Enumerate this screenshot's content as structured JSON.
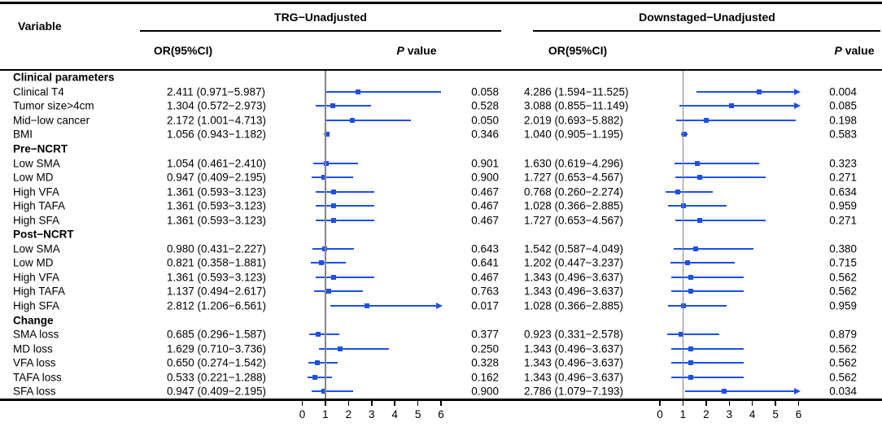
{
  "header": {
    "variable_label": "Variable",
    "or_ci_label": "OR(95%CI)",
    "p_label_italic": "P",
    "p_label_rest": " value"
  },
  "colors": {
    "accent_blue": "#1e50e6",
    "reference_gray": "#858585",
    "text_black": "#000000"
  },
  "chart_data": {
    "type": "scatter",
    "subtype": "forest-plot",
    "groups": [
      "TRG−Unadjusted",
      "Downstaged−Unadjusted"
    ],
    "x_axis": {
      "ticks": [
        0,
        1,
        2,
        3,
        4,
        5,
        6
      ],
      "range": [
        0,
        6
      ],
      "reference_line": 1
    },
    "rows": [
      {
        "type": "section",
        "label": "Clinical parameters"
      },
      {
        "type": "data",
        "label": "Clinical T4",
        "trg": {
          "text": "2.411 (0.971−5.987)",
          "or": 2.411,
          "lo": 0.971,
          "hi": 5.987,
          "p": "0.058"
        },
        "ds": {
          "text": "4.286 (1.594−11.525)",
          "or": 4.286,
          "lo": 1.594,
          "hi": 11.525,
          "p": "0.004"
        }
      },
      {
        "type": "data",
        "label": "Tumor size>4cm",
        "trg": {
          "text": "1.304 (0.572−2.973)",
          "or": 1.304,
          "lo": 0.572,
          "hi": 2.973,
          "p": "0.528"
        },
        "ds": {
          "text": "3.088 (0.855−11.149)",
          "or": 3.088,
          "lo": 0.855,
          "hi": 11.149,
          "p": "0.085"
        }
      },
      {
        "type": "data",
        "label": "Mid−low cancer",
        "trg": {
          "text": "2.172 (1.001−4.713)",
          "or": 2.172,
          "lo": 1.001,
          "hi": 4.713,
          "p": "0.050"
        },
        "ds": {
          "text": "2.019 (0.693−5.882)",
          "or": 2.019,
          "lo": 0.693,
          "hi": 5.882,
          "p": "0.198"
        }
      },
      {
        "type": "data",
        "label": "BMI",
        "trg": {
          "text": "1.056 (0.943−1.182)",
          "or": 1.056,
          "lo": 0.943,
          "hi": 1.182,
          "p": "0.346"
        },
        "ds": {
          "text": "1.040 (0.905−1.195)",
          "or": 1.04,
          "lo": 0.905,
          "hi": 1.195,
          "p": "0.583"
        }
      },
      {
        "type": "section",
        "label": "Pre−NCRT"
      },
      {
        "type": "data",
        "label": "Low SMA",
        "trg": {
          "text": "1.054 (0.461−2.410)",
          "or": 1.054,
          "lo": 0.461,
          "hi": 2.41,
          "p": "0.901"
        },
        "ds": {
          "text": "1.630 (0.619−4.296)",
          "or": 1.63,
          "lo": 0.619,
          "hi": 4.296,
          "p": "0.323"
        }
      },
      {
        "type": "data",
        "label": "Low MD",
        "trg": {
          "text": "0.947 (0.409−2.195)",
          "or": 0.947,
          "lo": 0.409,
          "hi": 2.195,
          "p": "0.900"
        },
        "ds": {
          "text": "1.727 (0.653−4.567)",
          "or": 1.727,
          "lo": 0.653,
          "hi": 4.567,
          "p": "0.271"
        }
      },
      {
        "type": "data",
        "label": "High VFA",
        "trg": {
          "text": "1.361 (0.593−3.123)",
          "or": 1.361,
          "lo": 0.593,
          "hi": 3.123,
          "p": "0.467"
        },
        "ds": {
          "text": "0.768 (0.260−2.274)",
          "or": 0.768,
          "lo": 0.26,
          "hi": 2.274,
          "p": "0.634"
        }
      },
      {
        "type": "data",
        "label": "High TAFA",
        "trg": {
          "text": "1.361 (0.593−3.123)",
          "or": 1.361,
          "lo": 0.593,
          "hi": 3.123,
          "p": "0.467"
        },
        "ds": {
          "text": "1.028 (0.366−2.885)",
          "or": 1.028,
          "lo": 0.366,
          "hi": 2.885,
          "p": "0.959"
        }
      },
      {
        "type": "data",
        "label": "High SFA",
        "trg": {
          "text": "1.361 (0.593−3.123)",
          "or": 1.361,
          "lo": 0.593,
          "hi": 3.123,
          "p": "0.467"
        },
        "ds": {
          "text": "1.727 (0.653−4.567)",
          "or": 1.727,
          "lo": 0.653,
          "hi": 4.567,
          "p": "0.271"
        }
      },
      {
        "type": "section",
        "label": "Post−NCRT"
      },
      {
        "type": "data",
        "label": "Low SMA",
        "trg": {
          "text": "0.980 (0.431−2.227)",
          "or": 0.98,
          "lo": 0.431,
          "hi": 2.227,
          "p": "0.643"
        },
        "ds": {
          "text": "1.542 (0.587−4.049)",
          "or": 1.542,
          "lo": 0.587,
          "hi": 4.049,
          "p": "0.380"
        }
      },
      {
        "type": "data",
        "label": "Low MD",
        "trg": {
          "text": "0.821 (0.358−1.881)",
          "or": 0.821,
          "lo": 0.358,
          "hi": 1.881,
          "p": "0.641"
        },
        "ds": {
          "text": "1.202 (0.447−3.237)",
          "or": 1.202,
          "lo": 0.447,
          "hi": 3.237,
          "p": "0.715"
        }
      },
      {
        "type": "data",
        "label": "High VFA",
        "trg": {
          "text": "1.361 (0.593−3.123)",
          "or": 1.361,
          "lo": 0.593,
          "hi": 3.123,
          "p": "0.467"
        },
        "ds": {
          "text": "1.343 (0.496−3.637)",
          "or": 1.343,
          "lo": 0.496,
          "hi": 3.637,
          "p": "0.562"
        }
      },
      {
        "type": "data",
        "label": "High TAFA",
        "trg": {
          "text": "1.137 (0.494−2.617)",
          "or": 1.137,
          "lo": 0.494,
          "hi": 2.617,
          "p": "0.763"
        },
        "ds": {
          "text": "1.343 (0.496−3.637)",
          "or": 1.343,
          "lo": 0.496,
          "hi": 3.637,
          "p": "0.562"
        }
      },
      {
        "type": "data",
        "label": "High SFA",
        "trg": {
          "text": "2.812 (1.206−6.561)",
          "or": 2.812,
          "lo": 1.206,
          "hi": 6.561,
          "p": "0.017"
        },
        "ds": {
          "text": "1.028 (0.366−2.885)",
          "or": 1.028,
          "lo": 0.366,
          "hi": 2.885,
          "p": "0.959"
        }
      },
      {
        "type": "section",
        "label": "Change"
      },
      {
        "type": "data",
        "label": "SMA loss",
        "trg": {
          "text": "0.685 (0.296−1.587)",
          "or": 0.685,
          "lo": 0.296,
          "hi": 1.587,
          "p": "0.377"
        },
        "ds": {
          "text": "0.923 (0.331−2.578)",
          "or": 0.923,
          "lo": 0.331,
          "hi": 2.578,
          "p": "0.879"
        }
      },
      {
        "type": "data",
        "label": "MD loss",
        "trg": {
          "text": "1.629 (0.710−3.736)",
          "or": 1.629,
          "lo": 0.71,
          "hi": 3.736,
          "p": "0.250"
        },
        "ds": {
          "text": "1.343 (0.496−3.637)",
          "or": 1.343,
          "lo": 0.496,
          "hi": 3.637,
          "p": "0.562"
        }
      },
      {
        "type": "data",
        "label": "VFA loss",
        "trg": {
          "text": "0.650 (0.274−1.542)",
          "or": 0.65,
          "lo": 0.274,
          "hi": 1.542,
          "p": "0.328"
        },
        "ds": {
          "text": "1.343 (0.496−3.637)",
          "or": 1.343,
          "lo": 0.496,
          "hi": 3.637,
          "p": "0.562"
        }
      },
      {
        "type": "data",
        "label": "TAFA loss",
        "trg": {
          "text": "0.533 (0.221−1.288)",
          "or": 0.533,
          "lo": 0.221,
          "hi": 1.288,
          "p": "0.162"
        },
        "ds": {
          "text": "1.343 (0.496−3.637)",
          "or": 1.343,
          "lo": 0.496,
          "hi": 3.637,
          "p": "0.562"
        }
      },
      {
        "type": "data",
        "label": "SFA loss",
        "trg": {
          "text": "0.947 (0.409−2.195)",
          "or": 0.947,
          "lo": 0.409,
          "hi": 2.195,
          "p": "0.900"
        },
        "ds": {
          "text": "2.786 (1.079−7.193)",
          "or": 2.786,
          "lo": 1.079,
          "hi": 7.193,
          "p": "0.034"
        }
      }
    ]
  }
}
